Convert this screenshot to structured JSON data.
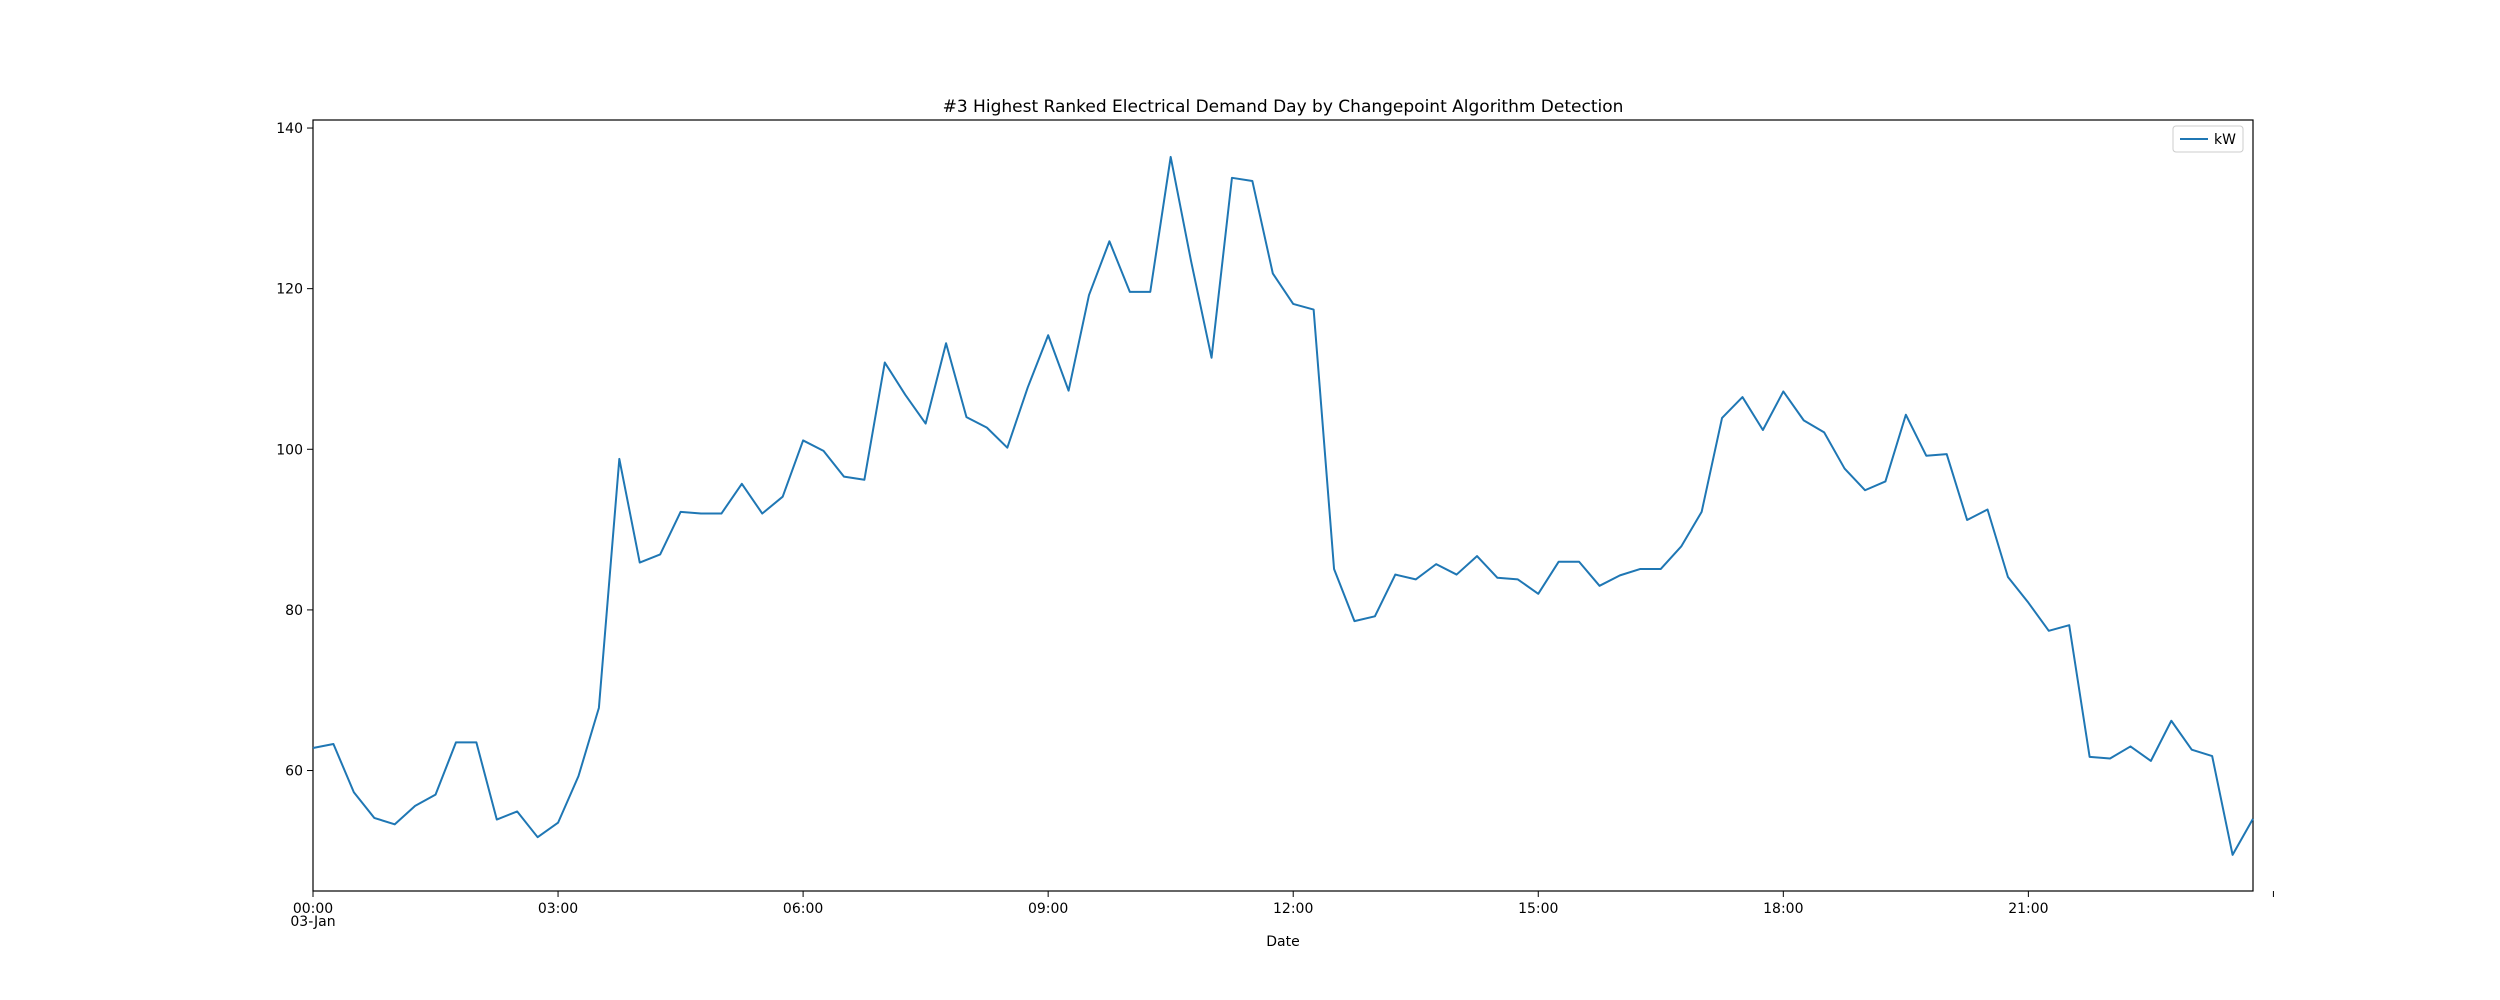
{
  "chart_data": {
    "type": "line",
    "title": "#3 Highest Ranked Electrical Demand Day by Changepoint Algorithm Detection",
    "xlabel": "Date",
    "ylabel": "",
    "x_date_label": "03-Jan",
    "x_tick_labels": [
      "00:00",
      "03:00",
      "06:00",
      "09:00",
      "12:00",
      "15:00",
      "18:00",
      "21:00",
      ""
    ],
    "y_ticks": [
      60,
      80,
      100,
      120,
      140
    ],
    "ylim": [
      45,
      141
    ],
    "xlim": [
      "00:00",
      "23:45"
    ],
    "grid": false,
    "legend_position": "top-right",
    "series": [
      {
        "name": "kW",
        "color": "#1f77b4",
        "x": [
          "00:00",
          "00:15",
          "00:30",
          "00:45",
          "01:00",
          "01:15",
          "01:30",
          "01:45",
          "02:00",
          "02:15",
          "02:30",
          "02:45",
          "03:00",
          "03:15",
          "03:30",
          "03:45",
          "04:00",
          "04:15",
          "04:30",
          "04:45",
          "05:00",
          "05:15",
          "05:30",
          "05:45",
          "06:00",
          "06:15",
          "06:30",
          "06:45",
          "07:00",
          "07:15",
          "07:30",
          "07:45",
          "08:00",
          "08:15",
          "08:30",
          "08:45",
          "09:00",
          "09:15",
          "09:30",
          "09:45",
          "10:00",
          "10:15",
          "10:30",
          "10:45",
          "11:00",
          "11:15",
          "11:30",
          "11:45",
          "12:00",
          "12:15",
          "12:30",
          "12:45",
          "13:00",
          "13:15",
          "13:30",
          "13:45",
          "14:00",
          "14:15",
          "14:30",
          "14:45",
          "15:00",
          "15:15",
          "15:30",
          "15:45",
          "16:00",
          "16:15",
          "16:30",
          "16:45",
          "17:00",
          "17:15",
          "17:30",
          "17:45",
          "18:00",
          "18:15",
          "18:30",
          "18:45",
          "19:00",
          "19:15",
          "19:30",
          "19:45",
          "20:00",
          "20:15",
          "20:30",
          "20:45",
          "21:00",
          "21:15",
          "21:30",
          "21:45",
          "22:00",
          "22:15",
          "22:30",
          "22:45",
          "23:00",
          "23:15",
          "23:30",
          "23:45"
        ],
        "values": [
          62.8,
          63.3,
          57.3,
          54.1,
          53.3,
          55.6,
          57.0,
          63.5,
          63.5,
          53.9,
          54.9,
          51.7,
          53.5,
          59.3,
          67.8,
          98.8,
          85.9,
          86.9,
          92.2,
          92.0,
          92.0,
          95.7,
          92.0,
          94.1,
          101.1,
          99.8,
          96.6,
          96.2,
          110.8,
          106.8,
          103.2,
          113.2,
          104.0,
          102.7,
          100.2,
          107.7,
          114.2,
          107.3,
          119.2,
          125.9,
          119.6,
          119.6,
          136.4,
          123.4,
          111.4,
          133.8,
          133.4,
          121.9,
          118.1,
          117.4,
          85.1,
          78.6,
          79.2,
          84.4,
          83.8,
          85.7,
          84.4,
          86.7,
          84.0,
          83.8,
          82.0,
          86.0,
          86.0,
          83.0,
          84.3,
          85.1,
          85.1,
          87.9,
          92.2,
          103.9,
          106.5,
          102.4,
          107.2,
          103.6,
          102.1,
          97.6,
          94.9,
          96.0,
          104.3,
          99.2,
          99.4,
          91.2,
          92.5,
          84.1,
          80.9,
          77.4,
          78.1,
          61.7,
          61.5,
          63.0,
          61.2,
          66.2,
          62.6,
          61.8,
          49.5,
          54.0
        ]
      }
    ]
  }
}
